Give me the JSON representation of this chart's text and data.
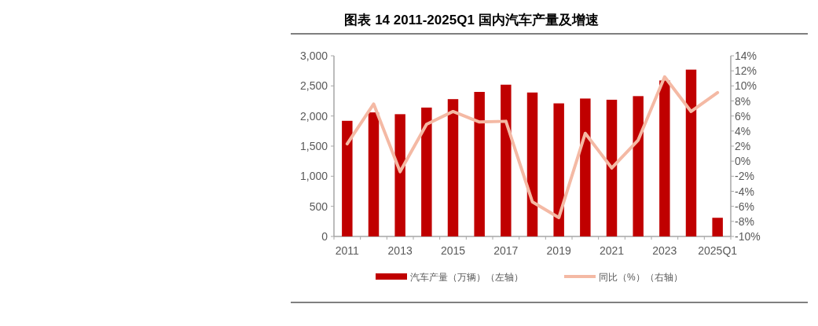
{
  "chart_data": {
    "type": "bar",
    "title": "图表 14   2011-2025Q1 国内汽车产量及增速",
    "categories": [
      "2011",
      null,
      "2013",
      null,
      "2015",
      null,
      "2017",
      null,
      "2019",
      null,
      "2021",
      null,
      "2023",
      null,
      "2025Q1"
    ],
    "series": [
      {
        "name": "汽车产量（万辆）（左轴）",
        "color": "#c00000",
        "values": [
          1920,
          2060,
          2030,
          2140,
          2280,
          2400,
          2520,
          2390,
          2210,
          2290,
          2270,
          2330,
          2590,
          2770,
          310
        ]
      },
      {
        "name": "同比（%）（右轴）",
        "type": "line",
        "axis": "y2",
        "color": "#f4b9a4",
        "values": [
          2.3,
          7.6,
          -1.4,
          4.9,
          6.6,
          5.2,
          5.3,
          -5.4,
          -7.5,
          3.7,
          -0.9,
          2.8,
          11.2,
          6.6,
          9.1
        ]
      }
    ],
    "ylim": [
      0,
      3000
    ],
    "yticks": [
      0,
      {
        "value": 500,
        "label": "500"
      },
      {
        "value": 1000,
        "label": "1,000"
      },
      {
        "value": 1500,
        "label": "1,500"
      },
      {
        "value": 2000,
        "label": "2,000"
      },
      {
        "value": 2500,
        "label": "2,500"
      },
      {
        "value": 3000,
        "label": "3,000"
      }
    ],
    "y2lim": [
      -10,
      14
    ],
    "y2ticks": [
      {
        "value": -10,
        "label": "-10%"
      },
      {
        "value": -8,
        "label": "-8%"
      },
      {
        "value": -6,
        "label": "-6%"
      },
      {
        "value": -4,
        "label": "-4%"
      },
      {
        "value": -2,
        "label": "-2%"
      },
      {
        "value": 0,
        "label": "0%"
      },
      {
        "value": 2,
        "label": "2%"
      },
      {
        "value": 4,
        "label": "4%"
      },
      {
        "value": 6,
        "label": "6%"
      },
      {
        "value": 8,
        "label": "8%"
      },
      {
        "value": 10,
        "label": "10%"
      },
      {
        "value": 12,
        "label": "12%"
      },
      {
        "value": 14,
        "label": "14%"
      }
    ],
    "legend": "bottom",
    "grid": false,
    "marker": "none",
    "line_style": "solid"
  }
}
